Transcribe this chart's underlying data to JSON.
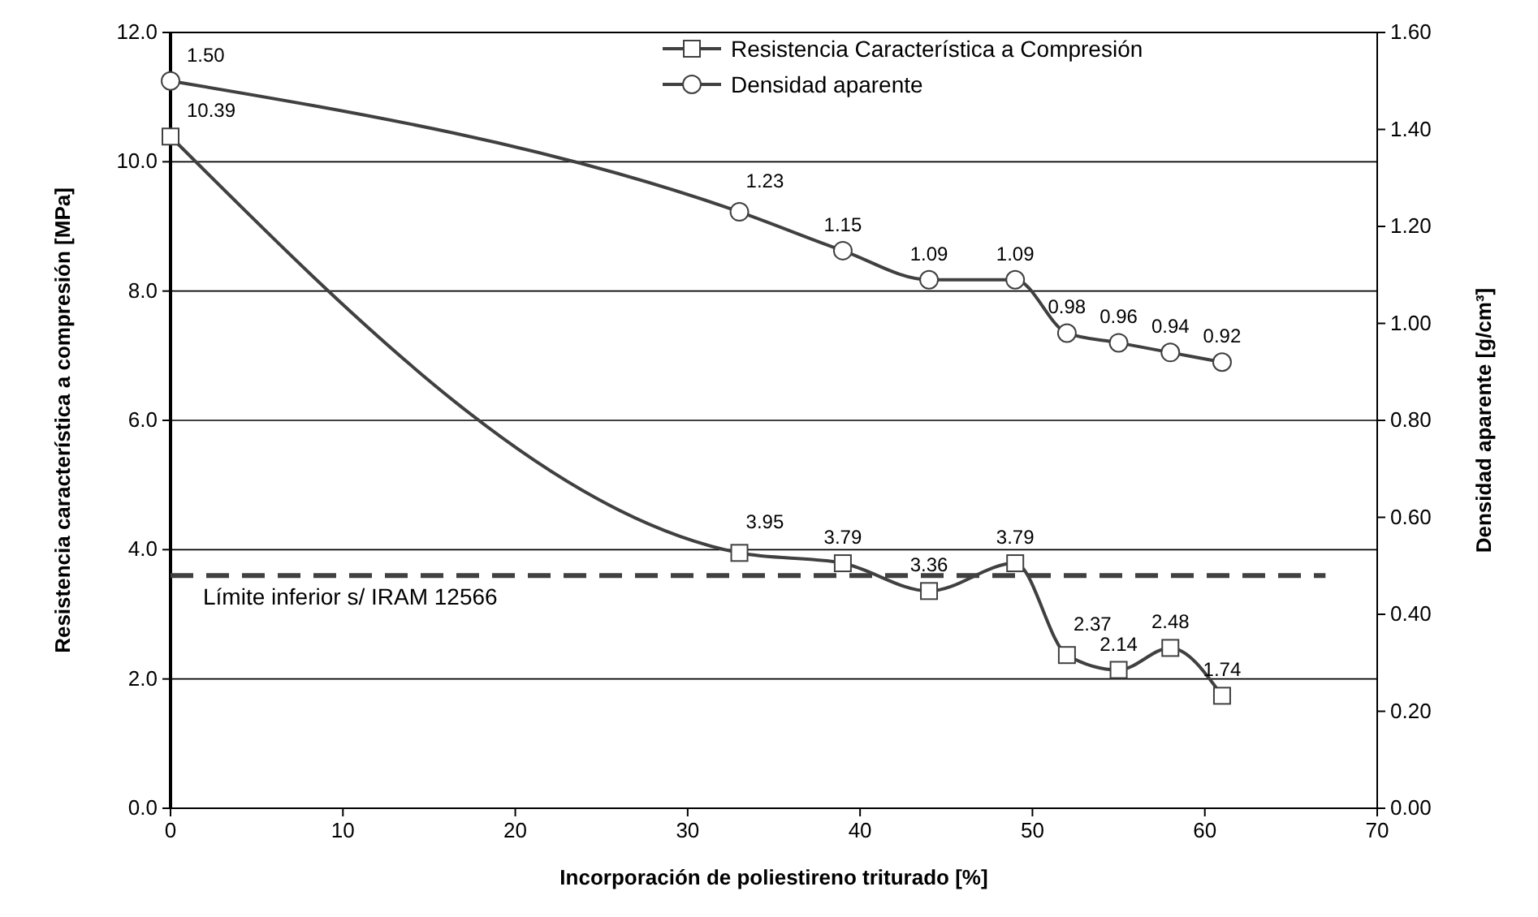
{
  "chart_data": {
    "type": "line",
    "xlabel": "Incorporación de  poliestireno triturado  [%]",
    "ylabel": "Resistencia característica a compresión [MPa]",
    "y2label": "Densidad aparente [g/cm³]",
    "x": [
      0,
      33,
      39,
      44,
      49,
      52,
      55,
      58,
      61
    ],
    "series": [
      {
        "name": "Resistencia Característica a Compresión",
        "color": "#404040",
        "marker": "square",
        "values": [
          10.39,
          3.95,
          3.79,
          3.36,
          3.79,
          2.37,
          2.14,
          2.48,
          1.74
        ]
      },
      {
        "name": "Densidad aparente",
        "color": "#404040",
        "marker": "circle",
        "axis": "y2",
        "values": [
          1.5,
          1.23,
          1.15,
          1.09,
          1.09,
          0.98,
          0.96,
          0.94,
          0.92
        ],
        "value_labels": [
          "1.50",
          "1.23",
          "1.15",
          "1.09",
          "1.09",
          "0.98",
          "0.96",
          "0.94",
          "0.92"
        ]
      }
    ],
    "xlim": [
      0,
      70
    ],
    "xticks": [
      0,
      10,
      20,
      30,
      40,
      50,
      60,
      70
    ],
    "ylim": [
      0,
      12
    ],
    "yticks": [
      {
        "value": 0,
        "label": "0.0"
      },
      {
        "value": 2,
        "label": "2.0"
      },
      {
        "value": 4,
        "label": "4.0"
      },
      {
        "value": 6,
        "label": "6.0"
      },
      {
        "value": 8,
        "label": "8.0"
      },
      {
        "value": 10,
        "label": "10.0"
      },
      {
        "value": 12,
        "label": "12.0"
      }
    ],
    "y2lim": [
      0,
      1.6
    ],
    "y2ticks": [
      {
        "value": 0,
        "label": "0.00"
      },
      {
        "value": 0.2,
        "label": "0.20"
      },
      {
        "value": 0.4,
        "label": "0.40"
      },
      {
        "value": 0.6,
        "label": "0.60"
      },
      {
        "value": 0.8,
        "label": "0.80"
      },
      {
        "value": 1,
        "label": "1.00"
      },
      {
        "value": 1.2,
        "label": "1.20"
      },
      {
        "value": 1.4,
        "label": "1.40"
      },
      {
        "value": 1.6,
        "label": "1.60"
      }
    ],
    "ref_lines": [
      {
        "axis": "y",
        "value": 3.6,
        "label": "Límite inferior s/ IRAM 12566",
        "color": "#404040",
        "line_style": "dashed"
      }
    ],
    "grid": "y",
    "legend": "top right",
    "data_labels": true,
    "line_style": "solid"
  }
}
